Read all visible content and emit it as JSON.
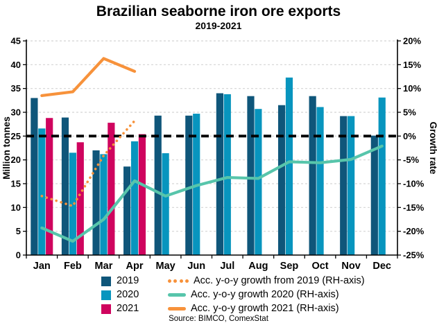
{
  "title": "Brazilian seaborne iron ore exports",
  "subtitle": "2019-2021",
  "source": "Source: BIMCO, ComexStat",
  "axes": {
    "left_label": "Million tonnes",
    "right_label": "Growth rate",
    "left_ticks": [
      "0",
      "5",
      "10",
      "15",
      "20",
      "25",
      "30",
      "35",
      "40",
      "45"
    ],
    "right_ticks": [
      "-25%",
      "-20%",
      "-15%",
      "-10%",
      "-5%",
      "0%",
      "5%",
      "10%",
      "15%",
      "20%"
    ],
    "months": [
      "Jan",
      "Feb",
      "Mar",
      "Apr",
      "May",
      "Jun",
      "Jul",
      "Aug",
      "Sep",
      "Oct",
      "Nov",
      "Dec"
    ]
  },
  "colors": {
    "bar_2019": "#0f567a",
    "bar_2020": "#0895be",
    "bar_2021": "#cf045e",
    "growth_2020_line": "#57c5ab",
    "growth_2019_line": "#f7923b",
    "growth_2021_line": "#f7923b",
    "zero_reference_line": "#000000",
    "gridline": "#d4d4d4"
  },
  "chart_data": {
    "type": "bar",
    "title": "Brazilian seaborne iron ore exports",
    "subtitle": "2019-2021",
    "categories": [
      "Jan",
      "Feb",
      "Mar",
      "Apr",
      "May",
      "Jun",
      "Jul",
      "Aug",
      "Sep",
      "Oct",
      "Nov",
      "Dec"
    ],
    "left_axis": {
      "label": "Million tonnes",
      "min": 0,
      "max": 45,
      "step": 5
    },
    "right_axis": {
      "label": "Growth rate",
      "min": -25,
      "max": 20,
      "step": 5,
      "format": "percent"
    },
    "grid": "horizontal-dashed",
    "legend_position": "bottom",
    "reference_line": {
      "axis": "right",
      "value": 0
    },
    "series": [
      {
        "name": "2019",
        "kind": "bar",
        "axis": "left",
        "color": "#0f567a",
        "values": [
          33.0,
          28.9,
          22.0,
          18.6,
          29.3,
          29.3,
          34.0,
          33.4,
          31.5,
          33.4,
          29.2,
          25.1
        ]
      },
      {
        "name": "2020",
        "kind": "bar",
        "axis": "left",
        "color": "#0895be",
        "values": [
          26.6,
          21.5,
          21.2,
          23.9,
          21.4,
          29.7,
          33.8,
          30.7,
          37.3,
          31.1,
          29.2,
          33.1
        ]
      },
      {
        "name": "2021",
        "kind": "bar",
        "axis": "left",
        "color": "#cf045e",
        "values": [
          28.8,
          23.7,
          27.8,
          25.4,
          null,
          null,
          null,
          null,
          null,
          null,
          null,
          null
        ]
      },
      {
        "name": "Acc. y-o-y growth from 2019 (RH-axis)",
        "kind": "line",
        "style": "dotted",
        "axis": "right",
        "color": "#f7923b",
        "values": [
          -12.6,
          -14.7,
          -4.1,
          3.2,
          null,
          null,
          null,
          null,
          null,
          null,
          null,
          null
        ]
      },
      {
        "name": "Acc. y-o-y growth 2020 (RH-axis)",
        "kind": "line",
        "style": "solid",
        "axis": "right",
        "color": "#57c5ab",
        "values": [
          -19.3,
          -22.1,
          -17.5,
          -9.4,
          -12.6,
          -10.4,
          -8.7,
          -8.9,
          -5.4,
          -5.6,
          -4.9,
          -2.1
        ]
      },
      {
        "name": "Acc. y-o-y growth 2021 (RH-axis)",
        "kind": "line",
        "style": "solid",
        "axis": "right",
        "color": "#f7923b",
        "values": [
          8.5,
          9.3,
          16.3,
          13.6,
          null,
          null,
          null,
          null,
          null,
          null,
          null,
          null
        ]
      }
    ]
  },
  "legend": {
    "rows": [
      [
        {
          "swatch": "square",
          "color": "#0f567a",
          "label": "2019"
        },
        {
          "swatch": "dotted-line",
          "color": "#f7923b",
          "label": "Acc. y-o-y growth from 2019 (RH-axis)"
        }
      ],
      [
        {
          "swatch": "square",
          "color": "#0895be",
          "label": "2020"
        },
        {
          "swatch": "solid-line",
          "color": "#57c5ab",
          "label": "Acc. y-o-y growth 2020 (RH-axis)"
        }
      ],
      [
        {
          "swatch": "square",
          "color": "#cf045e",
          "label": "2021"
        },
        {
          "swatch": "solid-line",
          "color": "#f7923b",
          "label": "Acc. y-o-y growth 2021 (RH-axis)"
        }
      ]
    ]
  }
}
